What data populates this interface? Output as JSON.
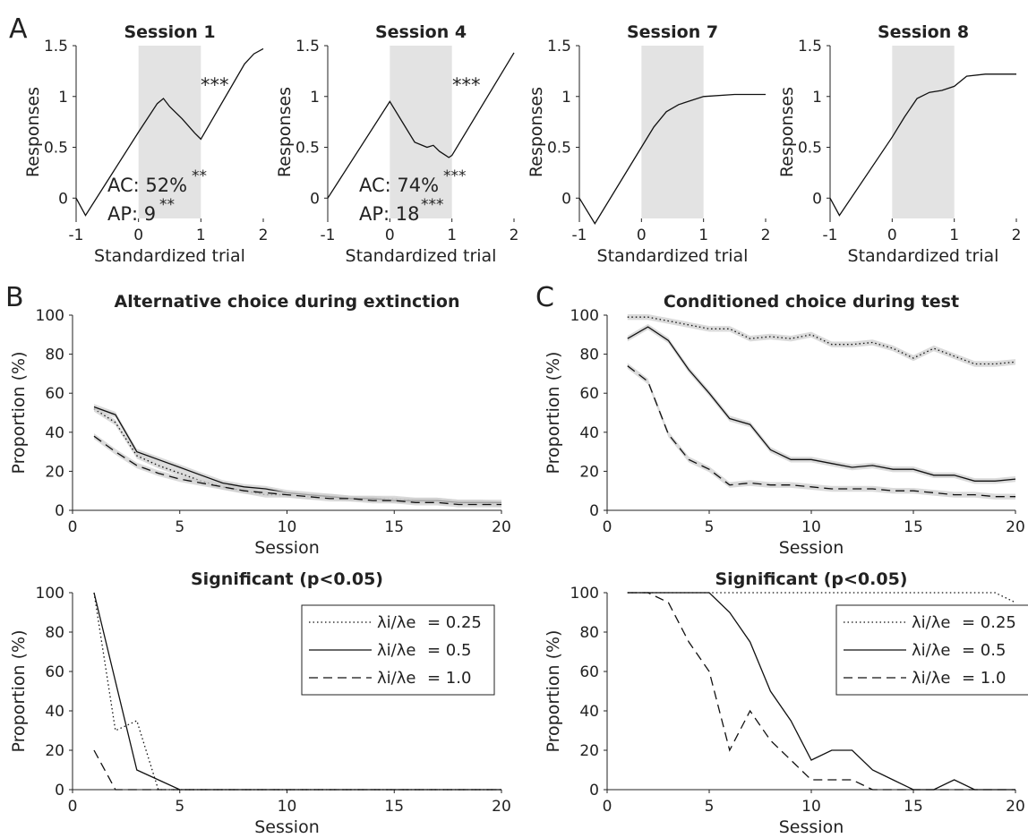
{
  "panel_labels": {
    "a": "A",
    "b": "B",
    "c": "C"
  },
  "annotations": {
    "s1_stars": "***",
    "s1_ac": "AC: 52%",
    "s1_ac_sup": "**",
    "s1_ap": "AP: 9",
    "s1_ap_sup": "**",
    "s4_stars": "***",
    "s4_ac": "AC: 74%",
    "s4_ac_sup": "***",
    "s4_ap": "AP: 18",
    "s4_ap_sup": "***"
  },
  "legend": {
    "frac": "λi/λe",
    "entries": [
      {
        "value": "= 0.25",
        "dash": "dotted"
      },
      {
        "value": "= 0.5",
        "dash": "solid"
      },
      {
        "value": "= 1.0",
        "dash": "dashed"
      }
    ]
  },
  "chart_data": [
    {
      "id": "s1",
      "type": "line",
      "title": "Session 1",
      "xlabel": "Standardized trial",
      "ylabel": "Responses",
      "xlim": [
        -1,
        2
      ],
      "ylim": [
        -0.2,
        1.5
      ],
      "xticks": [
        "-1",
        "0",
        "1",
        "2"
      ],
      "yticks": [
        "0",
        "0.5",
        "1",
        "1.5"
      ],
      "shaded_region": [
        0,
        1
      ],
      "series": [
        {
          "x": [
            -1,
            -0.85,
            0,
            0.3,
            0.4,
            0.5,
            0.7,
            0.9,
            1,
            1.7,
            1.85,
            2
          ],
          "y": [
            0,
            -0.17,
            0.65,
            0.93,
            0.98,
            0.9,
            0.78,
            0.64,
            0.58,
            1.32,
            1.42,
            1.47
          ],
          "dash": "solid"
        }
      ]
    },
    {
      "id": "s4",
      "type": "line",
      "title": "Session 4",
      "xlabel": "Standardized trial",
      "ylabel": "Responses",
      "xlim": [
        -1,
        2
      ],
      "ylim": [
        -0.2,
        1.5
      ],
      "xticks": [
        "-1",
        "0",
        "1",
        "2"
      ],
      "yticks": [
        "0",
        "0.5",
        "1",
        "1.5"
      ],
      "shaded_region": [
        0,
        1
      ],
      "series": [
        {
          "x": [
            -1,
            0,
            0.2,
            0.4,
            0.6,
            0.7,
            0.8,
            0.9,
            0.95,
            1,
            2
          ],
          "y": [
            0,
            0.95,
            0.75,
            0.55,
            0.5,
            0.52,
            0.46,
            0.42,
            0.4,
            0.42,
            1.43
          ],
          "dash": "solid"
        }
      ]
    },
    {
      "id": "s7",
      "type": "line",
      "title": "Session 7",
      "xlabel": "Standardized trial",
      "ylabel": "Responses",
      "xlim": [
        -1,
        2
      ],
      "ylim": [
        -0.2,
        1.5
      ],
      "xticks": [
        "-1",
        "0",
        "1",
        "2"
      ],
      "yticks": [
        "0",
        "0.5",
        "1",
        "1.5"
      ],
      "shaded_region": [
        0,
        1
      ],
      "series": [
        {
          "x": [
            -1,
            -0.75,
            0,
            0.2,
            0.4,
            0.6,
            0.8,
            1,
            1.5,
            2
          ],
          "y": [
            0,
            -0.25,
            0.5,
            0.7,
            0.85,
            0.92,
            0.96,
            1.0,
            1.02,
            1.02
          ],
          "dash": "solid"
        }
      ]
    },
    {
      "id": "s8",
      "type": "line",
      "title": "Session 8",
      "xlabel": "Standardized trial",
      "ylabel": "Responses",
      "xlim": [
        -1,
        2
      ],
      "ylim": [
        -0.2,
        1.5
      ],
      "xticks": [
        "-1",
        "0",
        "1",
        "2"
      ],
      "yticks": [
        "0",
        "0.5",
        "1",
        "1.5"
      ],
      "shaded_region": [
        0,
        1
      ],
      "series": [
        {
          "x": [
            -1,
            -0.85,
            0,
            0.2,
            0.4,
            0.6,
            0.8,
            1,
            1.2,
            1.5,
            2
          ],
          "y": [
            0,
            -0.17,
            0.6,
            0.8,
            0.98,
            1.04,
            1.06,
            1.1,
            1.2,
            1.22,
            1.22
          ],
          "dash": "solid"
        }
      ]
    },
    {
      "id": "b1",
      "type": "line",
      "title": "Alternative choice during extinction",
      "xlabel": "Session",
      "ylabel": "Proportion (%)",
      "xlim": [
        0,
        20
      ],
      "ylim": [
        0,
        100
      ],
      "xticks": [
        "0",
        "5",
        "10",
        "15",
        "20"
      ],
      "yticks": [
        "0",
        "20",
        "40",
        "60",
        "80",
        "100"
      ],
      "band": true,
      "series": [
        {
          "name": "λi/λe = 0.25",
          "dash": "dotted",
          "x": [
            1,
            2,
            3,
            4,
            5,
            6,
            7,
            8,
            9,
            10,
            11,
            12,
            13,
            14,
            15,
            16,
            17,
            18,
            19,
            20
          ],
          "y": [
            52,
            45,
            28,
            23,
            19,
            15,
            12,
            10,
            8,
            8,
            7,
            7,
            6,
            6,
            6,
            5,
            5,
            4,
            4,
            3
          ]
        },
        {
          "name": "λi/λe = 0.5",
          "dash": "solid",
          "x": [
            1,
            2,
            3,
            4,
            5,
            6,
            7,
            8,
            9,
            10,
            11,
            12,
            13,
            14,
            15,
            16,
            17,
            18,
            19,
            20
          ],
          "y": [
            53,
            49,
            30,
            26,
            22,
            18,
            14,
            12,
            11,
            9,
            8,
            7,
            6,
            6,
            5,
            5,
            5,
            4,
            4,
            4
          ]
        },
        {
          "name": "λi/λe = 1.0",
          "dash": "dashed",
          "x": [
            1,
            2,
            3,
            4,
            5,
            6,
            7,
            8,
            9,
            10,
            11,
            12,
            13,
            14,
            15,
            16,
            17,
            18,
            19,
            20
          ],
          "y": [
            38,
            30,
            23,
            19,
            16,
            14,
            12,
            10,
            9,
            8,
            7,
            6,
            6,
            5,
            5,
            4,
            4,
            3,
            3,
            3
          ]
        }
      ]
    },
    {
      "id": "c1",
      "type": "line",
      "title": "Conditioned choice during test",
      "xlabel": "Session",
      "ylabel": "Proportion (%)",
      "xlim": [
        0,
        20
      ],
      "ylim": [
        0,
        100
      ],
      "xticks": [
        "0",
        "5",
        "10",
        "15",
        "20"
      ],
      "yticks": [
        "0",
        "20",
        "40",
        "60",
        "80",
        "100"
      ],
      "band": true,
      "series": [
        {
          "name": "λi/λe = 0.25",
          "dash": "dotted",
          "x": [
            1,
            2,
            3,
            4,
            5,
            6,
            7,
            8,
            9,
            10,
            11,
            12,
            13,
            14,
            15,
            16,
            17,
            18,
            19,
            20
          ],
          "y": [
            99,
            99,
            97,
            95,
            93,
            93,
            88,
            89,
            88,
            90,
            85,
            85,
            86,
            83,
            78,
            83,
            79,
            75,
            75,
            76
          ]
        },
        {
          "name": "λi/λe = 0.5",
          "dash": "solid",
          "x": [
            1,
            2,
            3,
            4,
            5,
            6,
            7,
            8,
            9,
            10,
            11,
            12,
            13,
            14,
            15,
            16,
            17,
            18,
            19,
            20
          ],
          "y": [
            88,
            94,
            87,
            72,
            60,
            47,
            44,
            31,
            26,
            26,
            24,
            22,
            23,
            21,
            21,
            18,
            18,
            15,
            15,
            16
          ]
        },
        {
          "name": "λi/λe = 1.0",
          "dash": "dashed",
          "x": [
            1,
            2,
            3,
            4,
            5,
            6,
            7,
            8,
            9,
            10,
            11,
            12,
            13,
            14,
            15,
            16,
            17,
            18,
            19,
            20
          ],
          "y": [
            74,
            66,
            39,
            26,
            21,
            13,
            14,
            13,
            13,
            12,
            11,
            11,
            11,
            10,
            10,
            9,
            8,
            8,
            7,
            7
          ]
        }
      ]
    },
    {
      "id": "b2",
      "type": "line",
      "title": "Significant (p<0.05)",
      "xlabel": "Session",
      "ylabel": "Proportion (%)",
      "xlim": [
        0,
        20
      ],
      "ylim": [
        0,
        100
      ],
      "xticks": [
        "0",
        "5",
        "10",
        "15",
        "20"
      ],
      "yticks": [
        "0",
        "20",
        "40",
        "60",
        "80",
        "100"
      ],
      "legend": true,
      "series": [
        {
          "name": "λi/λe = 0.25",
          "dash": "dotted",
          "x": [
            1,
            2,
            3,
            4,
            5,
            10,
            15,
            20
          ],
          "y": [
            100,
            30,
            35,
            0,
            0,
            0,
            0,
            0
          ]
        },
        {
          "name": "λi/λe = 0.5",
          "dash": "solid",
          "x": [
            1,
            3,
            4,
            5,
            10,
            15,
            20
          ],
          "y": [
            100,
            10,
            5,
            0,
            0,
            0,
            0
          ]
        },
        {
          "name": "λi/λe = 1.0",
          "dash": "dashed",
          "x": [
            1,
            2,
            3,
            4,
            5,
            10,
            15,
            20
          ],
          "y": [
            20,
            0,
            0,
            0,
            0,
            0,
            0,
            0
          ]
        }
      ]
    },
    {
      "id": "c2",
      "type": "line",
      "title": "Significant (p<0.05)",
      "xlabel": "Session",
      "ylabel": "Proportion (%)",
      "xlim": [
        0,
        20
      ],
      "ylim": [
        0,
        100
      ],
      "xticks": [
        "0",
        "5",
        "10",
        "15",
        "20"
      ],
      "yticks": [
        "0",
        "20",
        "40",
        "60",
        "80",
        "100"
      ],
      "legend": true,
      "series": [
        {
          "name": "λi/λe = 0.25",
          "dash": "dotted",
          "x": [
            1,
            5,
            10,
            15,
            19,
            20
          ],
          "y": [
            100,
            100,
            100,
            100,
            100,
            95
          ]
        },
        {
          "name": "λi/λe = 0.5",
          "dash": "solid",
          "x": [
            1,
            5,
            6,
            7,
            8,
            9,
            10,
            11,
            12,
            13,
            14,
            15,
            16,
            17,
            18,
            19,
            20
          ],
          "y": [
            100,
            100,
            90,
            75,
            50,
            35,
            15,
            20,
            20,
            10,
            5,
            0,
            0,
            5,
            0,
            0,
            0
          ]
        },
        {
          "name": "λi/λe = 1.0",
          "dash": "dashed",
          "x": [
            1,
            2,
            3,
            4,
            5,
            6,
            7,
            8,
            9,
            10,
            11,
            12,
            13,
            14,
            15,
            16,
            20
          ],
          "y": [
            100,
            100,
            95,
            75,
            60,
            20,
            40,
            25,
            15,
            5,
            5,
            5,
            0,
            0,
            0,
            0,
            0
          ]
        }
      ]
    }
  ]
}
